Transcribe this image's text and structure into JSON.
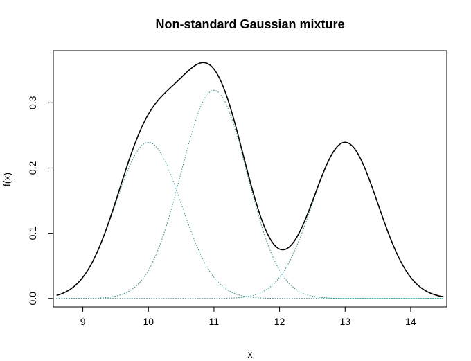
{
  "chart_data": {
    "type": "line",
    "title": "Non-standard Gaussian mixture",
    "xlabel": "x",
    "ylabel": "f(x)",
    "xlim": [
      8.55,
      14.55
    ],
    "ylim": [
      -0.013,
      0.38
    ],
    "x_ticks": [
      9,
      10,
      11,
      12,
      13,
      14
    ],
    "x_tick_labels": [
      "9",
      "10",
      "11",
      "12",
      "13",
      "14"
    ],
    "y_ticks": [
      0.0,
      0.1,
      0.2,
      0.3
    ],
    "y_tick_labels": [
      "0.0",
      "0.1",
      "0.2",
      "0.3"
    ],
    "x_range": [
      8.6,
      14.5
    ],
    "grid": false,
    "legend": "none",
    "mixture_color": "#000000",
    "component_color": "#1f8f8f",
    "series": [
      {
        "role": "mixture",
        "style": "solid"
      },
      {
        "role": "component",
        "style": "dotted",
        "weight": 0.3,
        "mean": 10,
        "sd": 0.5
      },
      {
        "role": "component",
        "style": "dotted",
        "weight": 0.4,
        "mean": 11,
        "sd": 0.5
      },
      {
        "role": "component",
        "style": "dotted",
        "weight": 0.3,
        "mean": 13,
        "sd": 0.5
      }
    ]
  }
}
